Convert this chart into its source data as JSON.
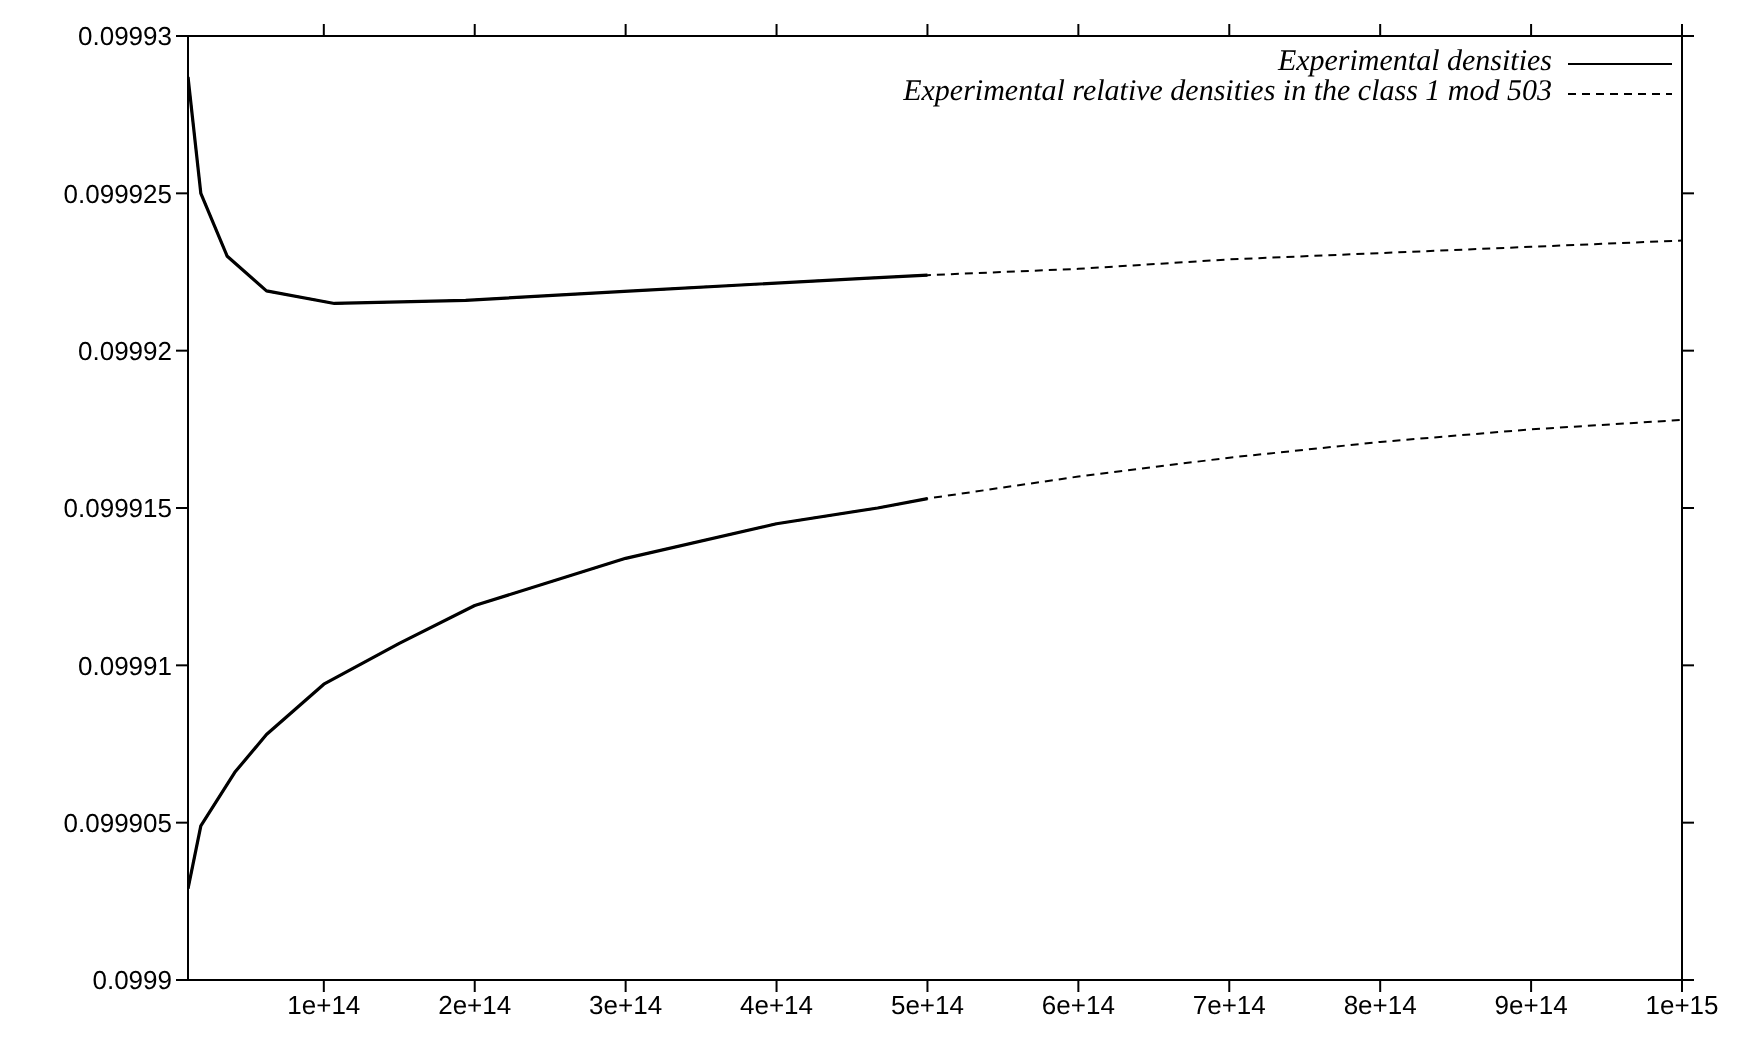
{
  "chart_data": {
    "type": "line",
    "xlim": [
      10000000000000.0,
      1000000000000000.0
    ],
    "xticks": [
      {
        "value": 100000000000000.0,
        "label": "1e+14"
      },
      {
        "value": 200000000000000.0,
        "label": "2e+14"
      },
      {
        "value": 300000000000000.0,
        "label": "3e+14"
      },
      {
        "value": 400000000000000.0,
        "label": "4e+14"
      },
      {
        "value": 500000000000000.0,
        "label": "5e+14"
      },
      {
        "value": 600000000000000.0,
        "label": "6e+14"
      },
      {
        "value": 700000000000000.0,
        "label": "7e+14"
      },
      {
        "value": 800000000000000.0,
        "label": "8e+14"
      },
      {
        "value": 900000000000000.0,
        "label": "9e+14"
      },
      {
        "value": 1000000000000000.0,
        "label": "1e+15"
      }
    ],
    "ylim": [
      0.0999,
      0.09993
    ],
    "yticks": [
      0.0999,
      0.099905,
      0.09991,
      0.099915,
      0.09992,
      0.099925,
      0.09993
    ],
    "legend": "top right",
    "marker": "none",
    "series": [
      {
        "name": "Experimental relative densities in the class 1 mod 503",
        "color": "#000000",
        "line_style": "dashed",
        "x": [
          10000000000000.0,
          18500000000000.0,
          36000000000000.0,
          62000000000000.0,
          107000000000000.0,
          194000000000000.0,
          305000000000000.0,
          458000000000000.0,
          500000000000000.0,
          600000000000000.0,
          700000000000000.0,
          800000000000000.0,
          900000000000000.0,
          1000000000000000.0
        ],
        "values": [
          0.0999287,
          0.099925,
          0.099923,
          0.0999219,
          0.0999215,
          0.0999216,
          0.0999219,
          0.0999223,
          0.0999224,
          0.0999226,
          0.0999229,
          0.0999231,
          0.0999233,
          0.0999235
        ]
      },
      {
        "color": "#000000",
        "line_style": "dashed",
        "x": [
          10000000000000.0,
          18500000000000.0,
          41000000000000.0,
          62000000000000.0,
          100000000000000.0,
          150000000000000.0,
          200000000000000.0,
          300000000000000.0,
          400000000000000.0,
          467000000000000.0,
          500000000000000.0,
          600000000000000.0,
          700000000000000.0,
          800000000000000.0,
          900000000000000.0,
          1000000000000000.0
        ],
        "values": [
          0.0999029,
          0.0999049,
          0.0999066,
          0.0999078,
          0.0999094,
          0.0999107,
          0.0999119,
          0.0999134,
          0.0999145,
          0.099915,
          0.0999153,
          0.099916,
          0.0999166,
          0.0999171,
          0.0999175,
          0.0999178
        ]
      },
      {
        "name": "Experimental densities",
        "color": "#000000",
        "line_style": "solid",
        "x": [
          10000000000000.0,
          18500000000000.0,
          36000000000000.0,
          62000000000000.0,
          107000000000000.0,
          194000000000000.0,
          305000000000000.0,
          458000000000000.0,
          500000000000000.0
        ],
        "values": [
          0.0999287,
          0.099925,
          0.099923,
          0.0999219,
          0.0999215,
          0.0999216,
          0.0999219,
          0.0999223,
          0.0999224
        ]
      },
      {
        "color": "#000000",
        "line_style": "solid",
        "x": [
          10000000000000.0,
          18500000000000.0,
          41000000000000.0,
          62000000000000.0,
          100000000000000.0,
          150000000000000.0,
          200000000000000.0,
          300000000000000.0,
          400000000000000.0,
          467000000000000.0,
          500000000000000.0
        ],
        "values": [
          0.0999029,
          0.0999049,
          0.0999066,
          0.0999078,
          0.0999094,
          0.0999107,
          0.0999119,
          0.0999134,
          0.0999145,
          0.099915,
          0.0999153
        ]
      }
    ]
  }
}
